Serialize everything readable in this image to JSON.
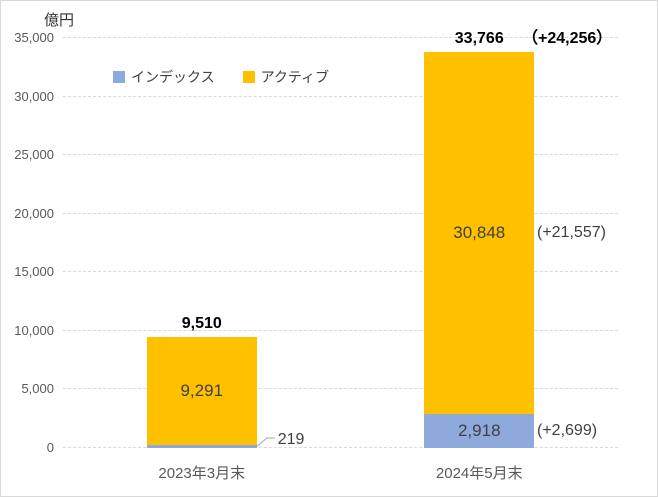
{
  "chart_data": {
    "type": "bar",
    "stacked": true,
    "unit": "億円",
    "categories": [
      "2023年3月末",
      "2024年5月末"
    ],
    "series": [
      {
        "key": "index",
        "name": "インデックス",
        "color": "#8EA9DB",
        "values": [
          219,
          2918
        ],
        "labels": [
          {
            "text": "219",
            "placement": "leader"
          },
          {
            "text": "2,918",
            "placement": "inside",
            "side_text": "(+2,699)"
          }
        ]
      },
      {
        "key": "active",
        "name": "アクティブ",
        "color": "#FFC000",
        "values": [
          9291,
          30848
        ],
        "labels": [
          {
            "text": "9,291",
            "placement": "inside"
          },
          {
            "text": "30,848",
            "placement": "inside",
            "side_text": "(+21,557)"
          }
        ]
      }
    ],
    "totals": [
      {
        "value": 9510,
        "text": "9,510"
      },
      {
        "value": 33766,
        "text": "33,766",
        "side_text": "（+24,256）"
      }
    ],
    "ylim": [
      0,
      35000
    ],
    "yticks": [
      0,
      5000,
      10000,
      15000,
      20000,
      25000,
      30000,
      35000
    ],
    "ytick_labels": [
      "0",
      "5,000",
      "10,000",
      "15,000",
      "20,000",
      "25,000",
      "30,000",
      "35,000"
    ],
    "legend_position": "top",
    "grid": true,
    "style": {
      "grid_color": "#D9D9D9",
      "axis_text_color": "#595959",
      "data_label_color": "#404040",
      "total_text_color": "#000000",
      "leader_line_color": "#A6A6A6",
      "border_color": "#D9D9D9",
      "background": "#FFFFFF"
    }
  }
}
